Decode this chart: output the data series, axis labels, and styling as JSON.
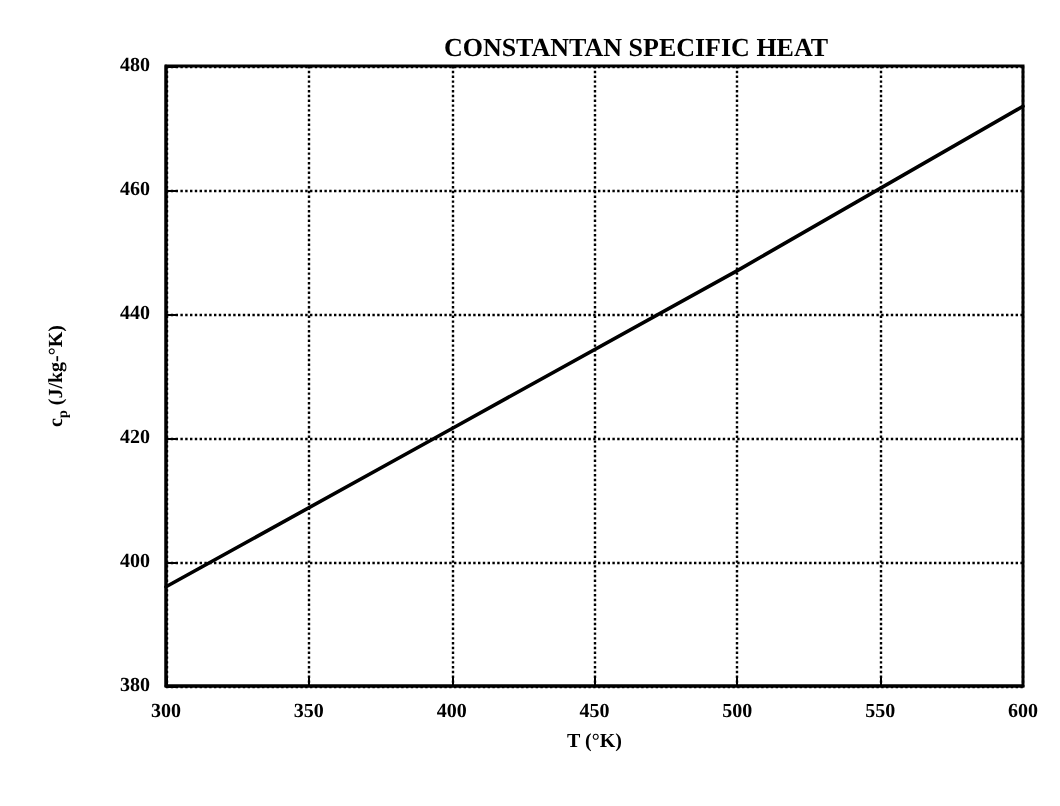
{
  "chart_data": {
    "type": "line",
    "title": "CONSTANTAN SPECIFIC HEAT",
    "xlabel": "T (°K)",
    "ylabel": "c$_{p}$ (J/kg-°K)",
    "x": [
      300,
      400,
      500,
      600
    ],
    "series": [
      {
        "color": "#000000",
        "values": [
          396,
          421.5,
          447,
          473.5
        ]
      }
    ],
    "xlim": [
      300,
      600
    ],
    "xticks": [
      300,
      350,
      400,
      450,
      500,
      550,
      600
    ],
    "ylim": [
      380,
      480
    ],
    "yticks": [
      380,
      400,
      420,
      440,
      460,
      480
    ],
    "grid": true,
    "marker": "none",
    "line_style": "solid"
  }
}
